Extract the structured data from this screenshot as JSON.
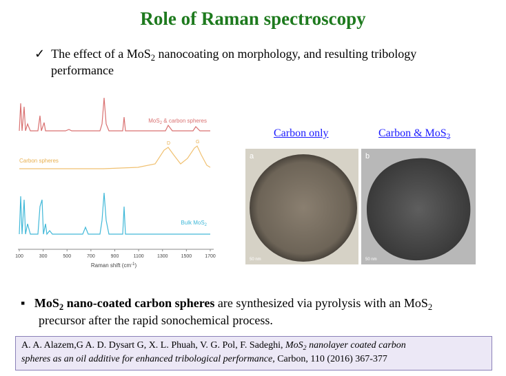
{
  "header": {
    "title": "Role of Raman spectroscopy"
  },
  "check_item": {
    "parts": [
      "The effect of a MoS",
      "2",
      " nanocoating on morphology, and resulting tribology",
      "performance"
    ]
  },
  "figure": {
    "series_labels": {
      "mos2_carbon": [
        "MoS",
        "2",
        " & carbon spheres"
      ],
      "carbon": "Carbon spheres",
      "bulk": [
        "Bulk MoS",
        "2"
      ]
    },
    "peak_labels": [
      "D",
      "G"
    ],
    "xticks": [
      100,
      300,
      500,
      700,
      900,
      1100,
      1300,
      1500,
      1700
    ],
    "xlabel": [
      "Raman shift  (cm",
      "-1",
      ")"
    ]
  },
  "images": {
    "left": {
      "caption": "Carbon only",
      "letter": "a",
      "scale": "50 nm"
    },
    "right": {
      "caption": [
        "Carbon & MoS",
        "2"
      ],
      "letter": "b",
      "scale": "50 nm"
    }
  },
  "bullet": {
    "parts": [
      "MoS",
      "2",
      " nano-coated carbon spheres",
      " are synthesized via pyrolysis with an MoS",
      "2",
      "precursor after the rapid sonochemical process."
    ]
  },
  "reference": {
    "parts": [
      "A. A. Alazem,G A. D. Dysart G, X. L. Phuah, V. G. Pol, F. Sadeghi, ",
      "MoS",
      "2",
      " nanolayer coated carbon",
      "spheres as an oil additive for enhanced tribological performance,",
      " Carbon, 110 (2016) 367-377"
    ]
  }
}
